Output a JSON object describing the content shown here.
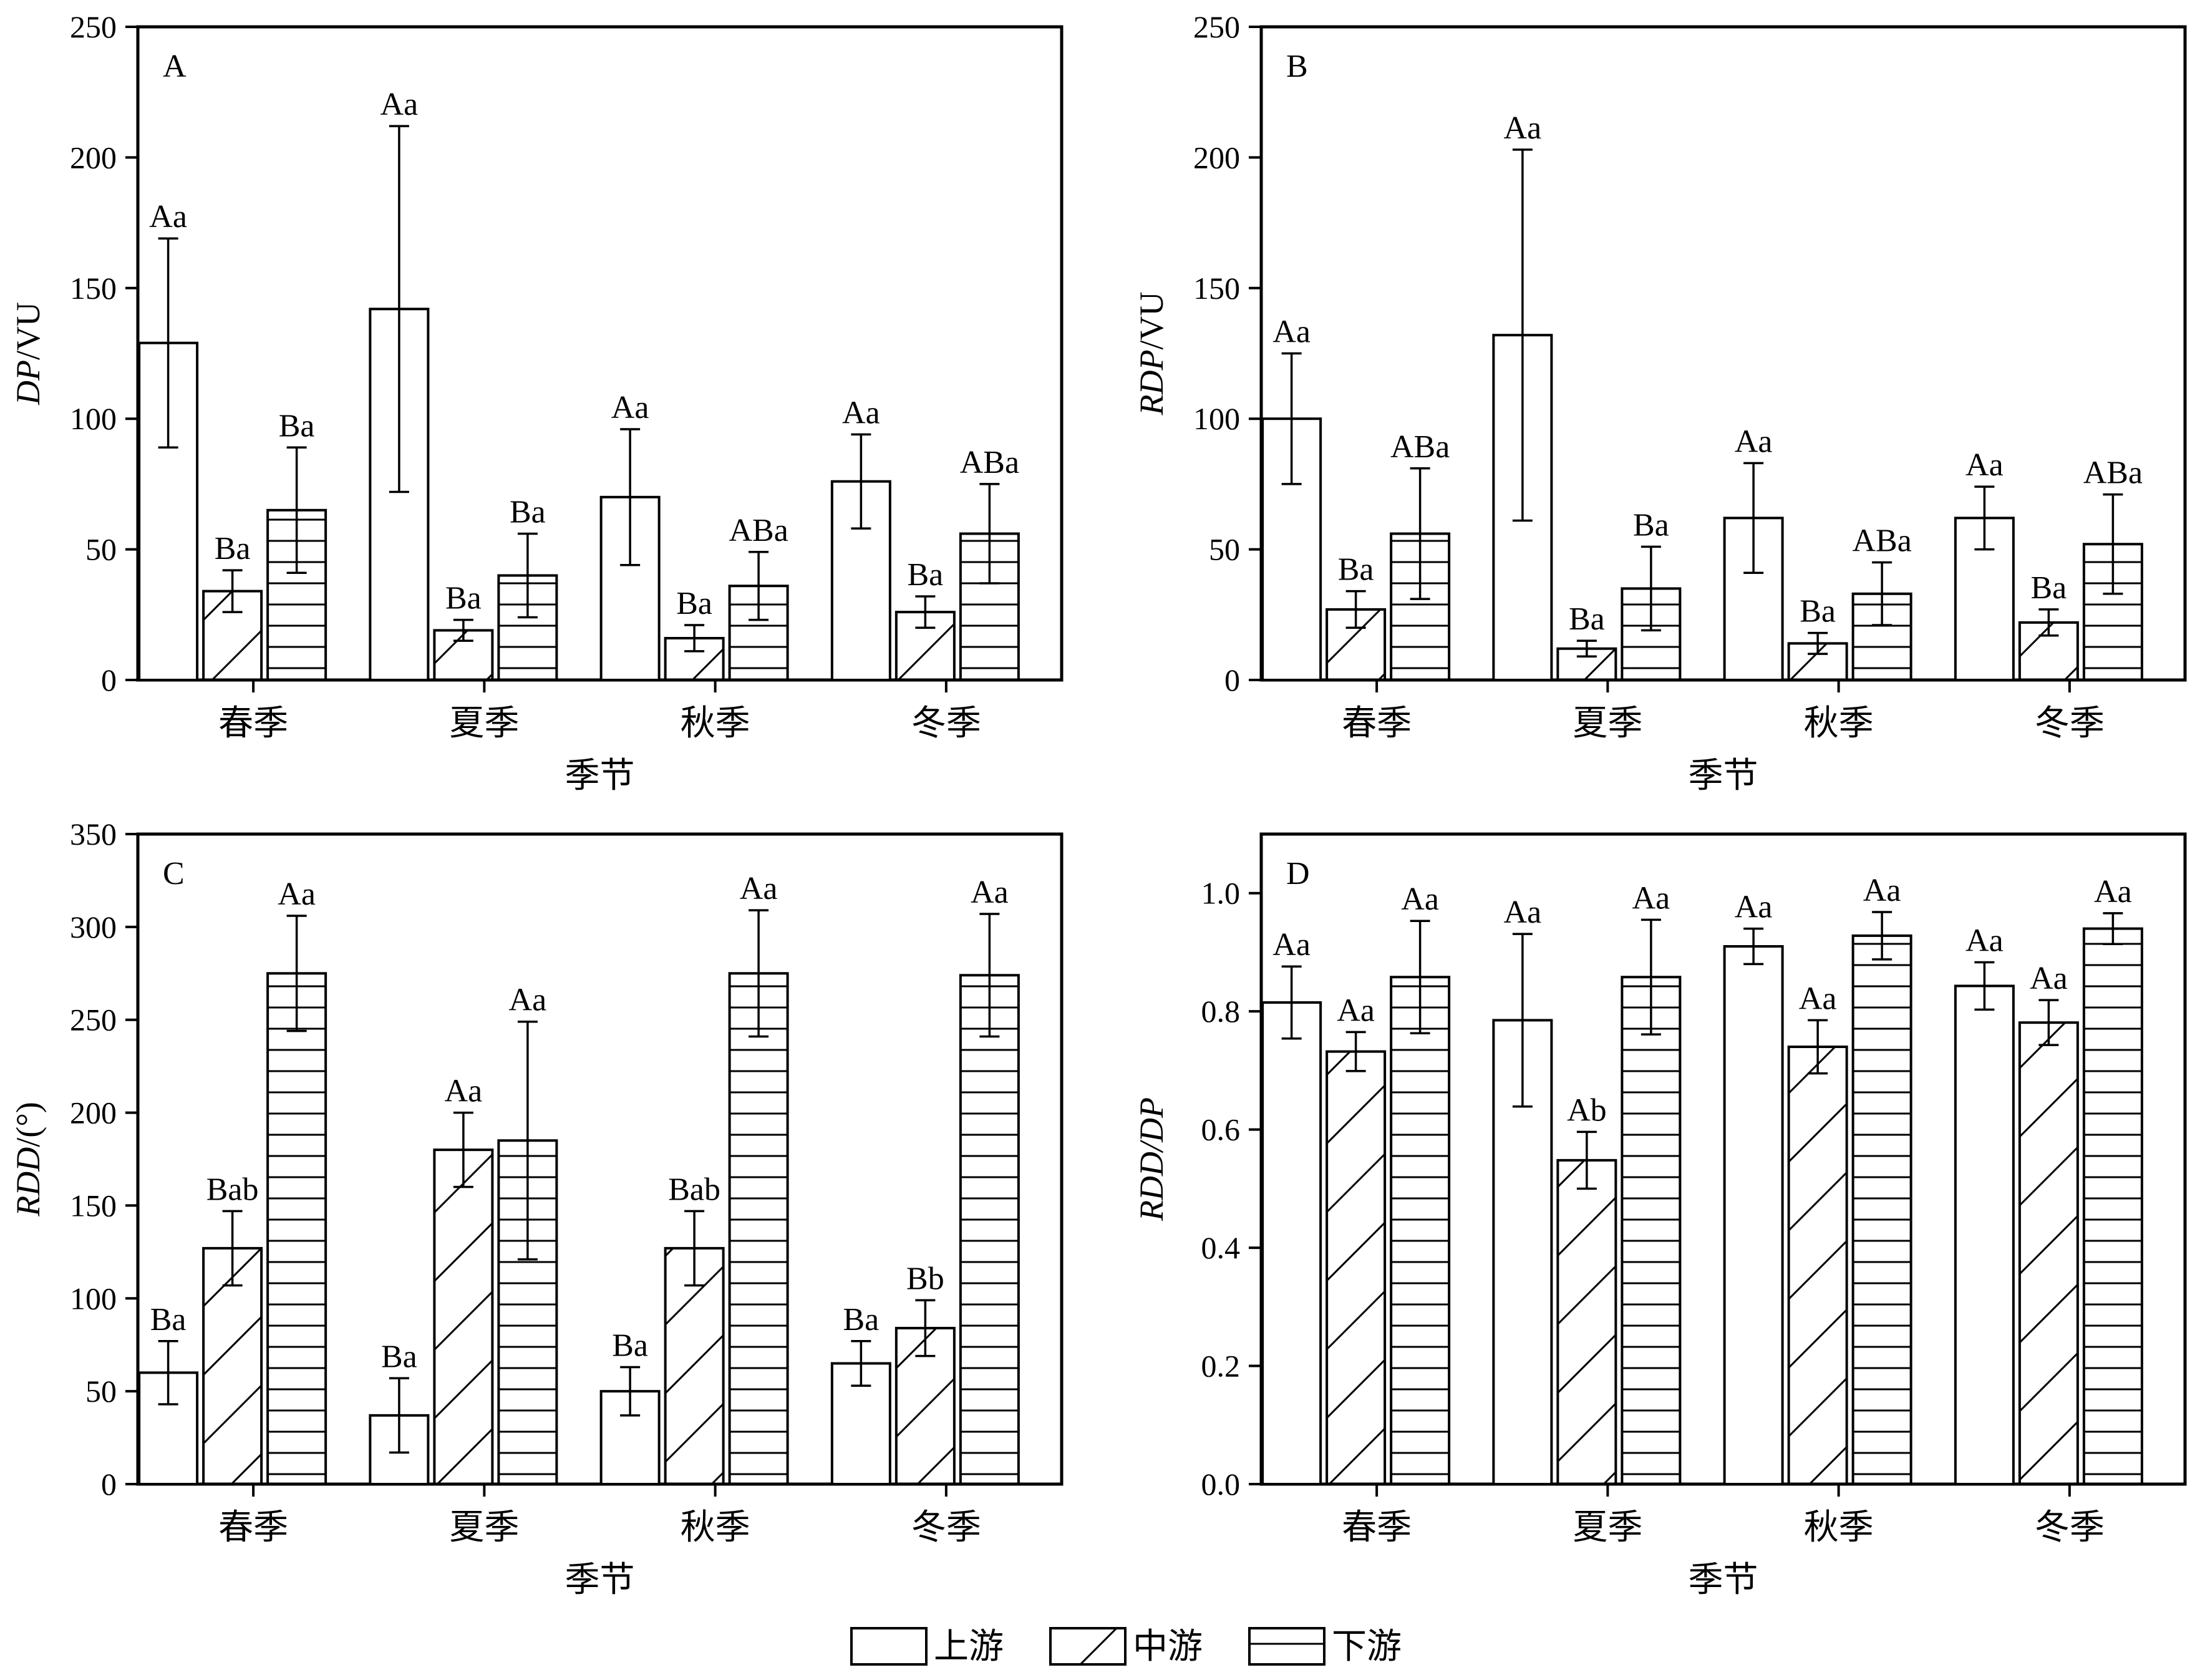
{
  "colors": {
    "ink": "#000000",
    "fill": "#ffffff"
  },
  "legend": [
    {
      "label": "上游",
      "pattern": "plain"
    },
    {
      "label": "中游",
      "pattern": "diagonal"
    },
    {
      "label": "下游",
      "pattern": "horizontal"
    }
  ],
  "chart_data": [
    {
      "type": "bar",
      "panel_label": "A",
      "categories": [
        "春季",
        "夏季",
        "秋季",
        "冬季"
      ],
      "xlabel": "季节",
      "ylabel_italic": "DP",
      "ylabel_rest": "/VU",
      "ylim": [
        0,
        250
      ],
      "yticks": [
        0,
        50,
        100,
        150,
        200,
        250
      ],
      "tick_decimals": 0,
      "series": [
        {
          "name": "上游",
          "values": [
            129,
            142,
            70,
            76
          ],
          "errors": [
            40,
            70,
            26,
            18
          ],
          "labels": [
            "Aa",
            "Aa",
            "Aa",
            "Aa"
          ]
        },
        {
          "name": "中游",
          "values": [
            34,
            19,
            16,
            26
          ],
          "errors": [
            8,
            4,
            5,
            6
          ],
          "labels": [
            "Ba",
            "Ba",
            "Ba",
            "Ba"
          ]
        },
        {
          "name": "下游",
          "values": [
            65,
            40,
            36,
            56
          ],
          "errors": [
            24,
            16,
            13,
            19
          ],
          "labels": [
            "Ba",
            "Ba",
            "ABa",
            "ABa"
          ]
        }
      ]
    },
    {
      "type": "bar",
      "panel_label": "B",
      "categories": [
        "春季",
        "夏季",
        "秋季",
        "冬季"
      ],
      "xlabel": "季节",
      "ylabel_italic": "RDP",
      "ylabel_rest": "/VU",
      "ylim": [
        0,
        250
      ],
      "yticks": [
        0,
        50,
        100,
        150,
        200,
        250
      ],
      "tick_decimals": 0,
      "series": [
        {
          "name": "上游",
          "values": [
            100,
            132,
            62,
            62
          ],
          "errors": [
            25,
            71,
            21,
            12
          ],
          "labels": [
            "Aa",
            "Aa",
            "Aa",
            "Aa"
          ]
        },
        {
          "name": "中游",
          "values": [
            27,
            12,
            14,
            22
          ],
          "errors": [
            7,
            3,
            4,
            5
          ],
          "labels": [
            "Ba",
            "Ba",
            "Ba",
            "Ba"
          ]
        },
        {
          "name": "下游",
          "values": [
            56,
            35,
            33,
            52
          ],
          "errors": [
            25,
            16,
            12,
            19
          ],
          "labels": [
            "ABa",
            "Ba",
            "ABa",
            "ABa"
          ]
        }
      ]
    },
    {
      "type": "bar",
      "panel_label": "C",
      "categories": [
        "春季",
        "夏季",
        "秋季",
        "冬季"
      ],
      "xlabel": "季节",
      "ylabel_italic": "RDD",
      "ylabel_rest": "/(°)",
      "ylim": [
        0,
        350
      ],
      "yticks": [
        0,
        50,
        100,
        150,
        200,
        250,
        300,
        350
      ],
      "tick_decimals": 0,
      "series": [
        {
          "name": "上游",
          "values": [
            60,
            37,
            50,
            65
          ],
          "errors": [
            17,
            20,
            13,
            12
          ],
          "labels": [
            "Ba",
            "Ba",
            "Ba",
            "Ba"
          ]
        },
        {
          "name": "中游",
          "values": [
            127,
            180,
            127,
            84
          ],
          "errors": [
            20,
            20,
            20,
            15
          ],
          "labels": [
            "Bab",
            "Aa",
            "Bab",
            "Bb"
          ]
        },
        {
          "name": "下游",
          "values": [
            275,
            185,
            275,
            274
          ],
          "errors": [
            31,
            64,
            34,
            33
          ],
          "labels": [
            "Aa",
            "Aa",
            "Aa",
            "Aa"
          ]
        }
      ]
    },
    {
      "type": "bar",
      "panel_label": "D",
      "categories": [
        "春季",
        "夏季",
        "秋季",
        "冬季"
      ],
      "xlabel": "季节",
      "ylabel_italic": "RDD/DP",
      "ylabel_rest": "",
      "ylim": [
        0,
        1.1
      ],
      "yticks": [
        0.0,
        0.2,
        0.4,
        0.6,
        0.8,
        1.0
      ],
      "tick_decimals": 1,
      "series": [
        {
          "name": "上游",
          "values": [
            0.815,
            0.785,
            0.91,
            0.843
          ],
          "errors": [
            0.061,
            0.146,
            0.03,
            0.04
          ],
          "labels": [
            "Aa",
            "Aa",
            "Aa",
            "Aa"
          ]
        },
        {
          "name": "中游",
          "values": [
            0.732,
            0.548,
            0.74,
            0.781
          ],
          "errors": [
            0.033,
            0.048,
            0.045,
            0.038
          ],
          "labels": [
            "Aa",
            "Ab",
            "Aa",
            "Aa"
          ]
        },
        {
          "name": "下游",
          "values": [
            0.858,
            0.858,
            0.928,
            0.94
          ],
          "errors": [
            0.095,
            0.097,
            0.04,
            0.026
          ],
          "labels": [
            "Aa",
            "Aa",
            "Aa",
            "Aa"
          ]
        }
      ]
    }
  ]
}
